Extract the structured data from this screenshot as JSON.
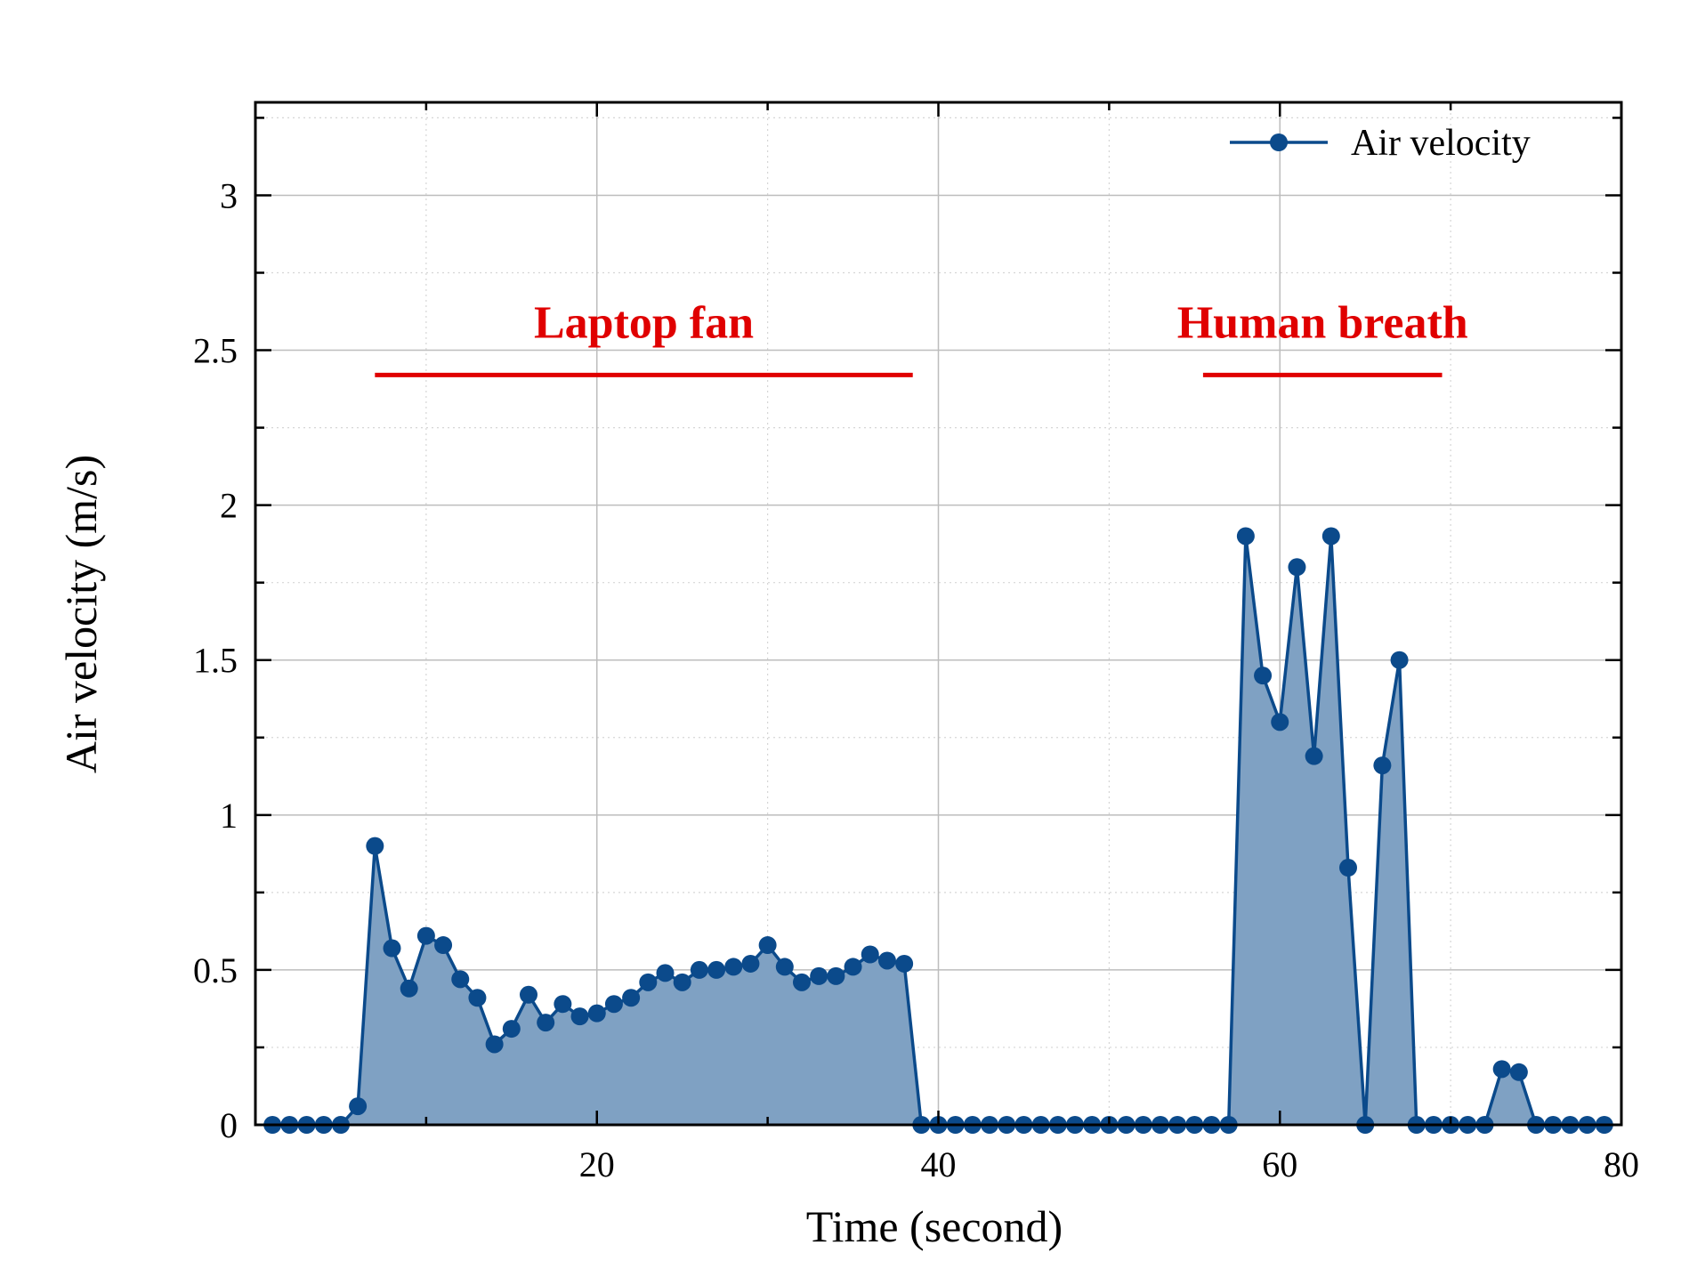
{
  "chart_data": {
    "type": "area",
    "xlabel": "Time (second)",
    "ylabel": "Air velocity (m/s)",
    "xlim": [
      0,
      80
    ],
    "ylim": [
      0,
      3.3
    ],
    "x_ticks": [
      20,
      40,
      60,
      80
    ],
    "y_ticks": [
      0,
      0.5,
      1,
      1.5,
      2,
      2.5,
      3
    ],
    "y_tick_labels": [
      "0",
      "0.5",
      "1",
      "1.5",
      "2",
      "2.5",
      "3"
    ],
    "grid": true,
    "legend_position": "top-right",
    "series": [
      {
        "name": "Air velocity",
        "color": "#0b4a8b",
        "fill_color": "#7fa1c3",
        "x": [
          1,
          2,
          3,
          4,
          5,
          6,
          7,
          8,
          9,
          10,
          11,
          12,
          13,
          14,
          15,
          16,
          17,
          18,
          19,
          20,
          21,
          22,
          23,
          24,
          25,
          26,
          27,
          28,
          29,
          30,
          31,
          32,
          33,
          34,
          35,
          36,
          37,
          38,
          39,
          40,
          41,
          42,
          43,
          44,
          45,
          46,
          47,
          48,
          49,
          50,
          51,
          52,
          53,
          54,
          55,
          56,
          57,
          58,
          59,
          60,
          61,
          62,
          63,
          64,
          65,
          66,
          67,
          68,
          69,
          70,
          71,
          72,
          73,
          74,
          75,
          76,
          77,
          78,
          79
        ],
        "y": [
          0,
          0,
          0,
          0,
          0,
          0.06,
          0.9,
          0.57,
          0.44,
          0.61,
          0.58,
          0.47,
          0.41,
          0.26,
          0.31,
          0.42,
          0.33,
          0.39,
          0.35,
          0.36,
          0.39,
          0.41,
          0.46,
          0.49,
          0.46,
          0.5,
          0.5,
          0.51,
          0.52,
          0.58,
          0.51,
          0.46,
          0.48,
          0.48,
          0.51,
          0.55,
          0.53,
          0.52,
          0,
          0,
          0,
          0,
          0,
          0,
          0,
          0,
          0,
          0,
          0,
          0,
          0,
          0,
          0,
          0,
          0,
          0,
          0,
          1.9,
          1.45,
          1.3,
          1.8,
          1.19,
          1.9,
          0.83,
          0,
          1.16,
          1.5,
          0,
          0,
          0,
          0,
          0,
          0.18,
          0.17,
          0,
          0,
          0,
          0,
          0
        ]
      }
    ],
    "annotations": [
      {
        "text": "Laptop fan",
        "x_start": 7,
        "x_end": 38.5,
        "y": 2.42,
        "color": "#e00000"
      },
      {
        "text": "Human breath",
        "x_start": 55.5,
        "x_end": 69.5,
        "y": 2.42,
        "color": "#e00000"
      }
    ]
  }
}
